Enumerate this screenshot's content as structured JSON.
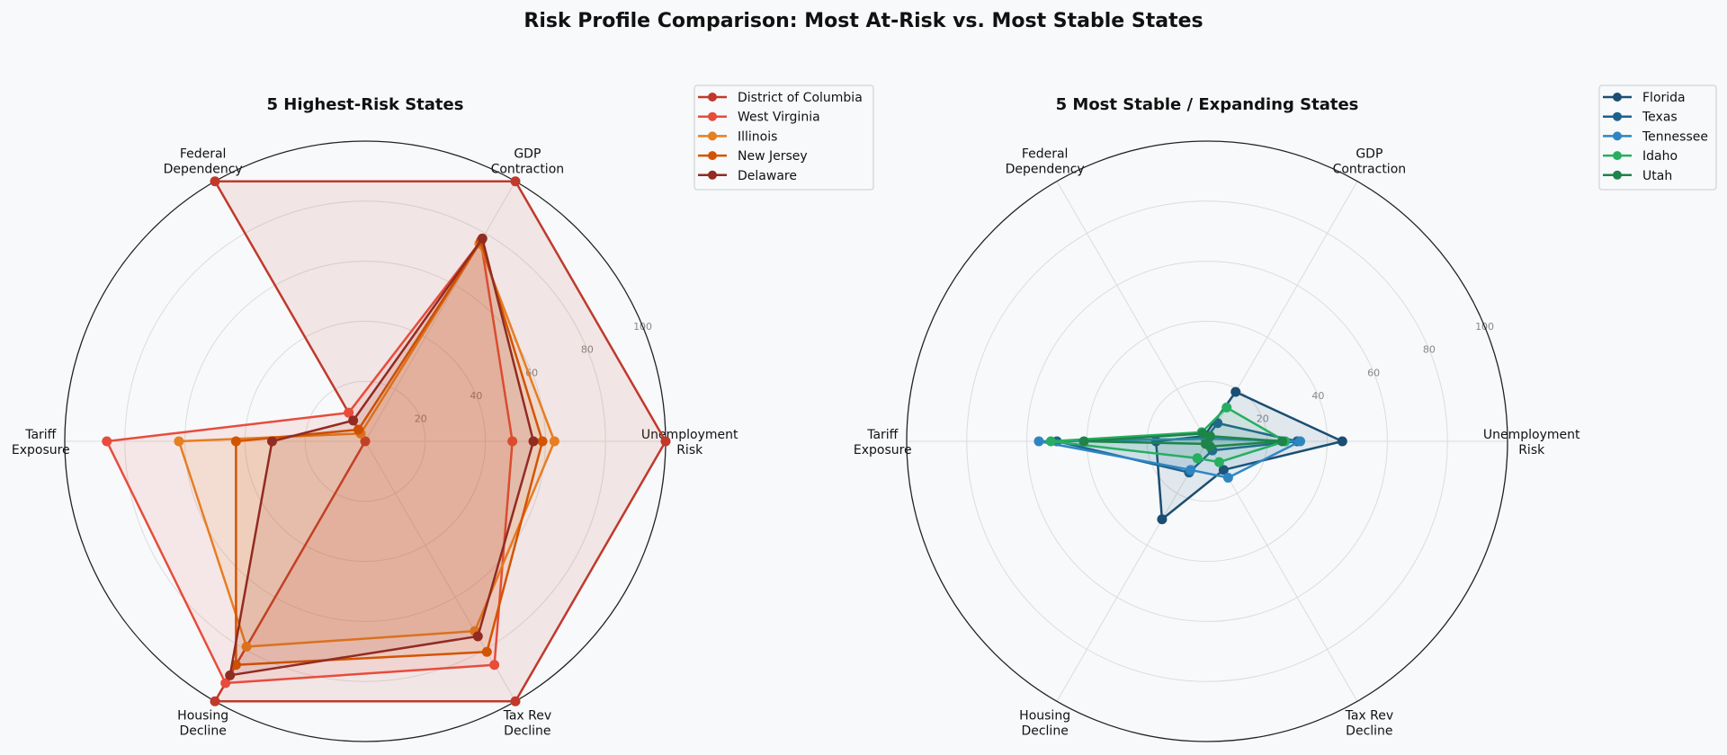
{
  "title": "Risk Profile Comparison: Most At-Risk vs. Most Stable States",
  "chart_data": [
    {
      "type": "radar",
      "title": "5 Highest-Risk States",
      "axes": [
        [
          "Unemployment",
          "Risk"
        ],
        [
          "GDP",
          "Contraction"
        ],
        [
          "Federal",
          "Dependency"
        ],
        [
          "Tariff",
          "Exposure"
        ],
        [
          "Housing",
          "Decline"
        ],
        [
          "Tax Rev",
          "Decline"
        ]
      ],
      "rlim": [
        0,
        100
      ],
      "rticks": [
        "20",
        "40",
        "60",
        "80",
        "100"
      ],
      "grid": true,
      "legend": "top-right",
      "series": [
        {
          "name": "District of Columbia",
          "color": "#c0392b",
          "values": [
            100,
            100,
            100,
            0,
            100,
            100
          ]
        },
        {
          "name": "West Virginia",
          "color": "#e74c3c",
          "values": [
            49,
            77,
            11,
            86,
            93,
            86
          ]
        },
        {
          "name": "Illinois",
          "color": "#e67e22",
          "values": [
            63,
            76,
            3,
            62,
            79,
            73
          ]
        },
        {
          "name": "New Jersey",
          "color": "#d35400",
          "values": [
            59,
            77,
            4.5,
            43,
            86,
            81
          ]
        },
        {
          "name": "Delaware",
          "color": "#922b21",
          "values": [
            56,
            78,
            8,
            31,
            90,
            75
          ]
        }
      ]
    },
    {
      "type": "radar",
      "title": "5 Most Stable / Expanding States",
      "axes": [
        [
          "Unemployment",
          "Risk"
        ],
        [
          "GDP",
          "Contraction"
        ],
        [
          "Federal",
          "Dependency"
        ],
        [
          "Tariff",
          "Exposure"
        ],
        [
          "Housing",
          "Decline"
        ],
        [
          "Tax Rev",
          "Decline"
        ]
      ],
      "rlim": [
        0,
        100
      ],
      "rticks": [
        "20",
        "40",
        "60",
        "80",
        "100"
      ],
      "grid": true,
      "legend": "top-right",
      "series": [
        {
          "name": "Florida",
          "color": "#1a4e72",
          "values": [
            45,
            19,
            2,
            17,
            30,
            11
          ]
        },
        {
          "name": "Texas",
          "color": "#1f618d",
          "values": [
            30,
            7,
            1,
            50,
            12,
            3.5
          ]
        },
        {
          "name": "Tennessee",
          "color": "#2e86c1",
          "values": [
            31,
            1,
            1,
            56,
            11,
            14
          ]
        },
        {
          "name": "Idaho",
          "color": "#27ae60",
          "values": [
            26,
            13,
            3.5,
            52,
            6.5,
            8
          ]
        },
        {
          "name": "Utah",
          "color": "#1e8449",
          "values": [
            25,
            2,
            3,
            41,
            1,
            2
          ]
        }
      ]
    }
  ]
}
